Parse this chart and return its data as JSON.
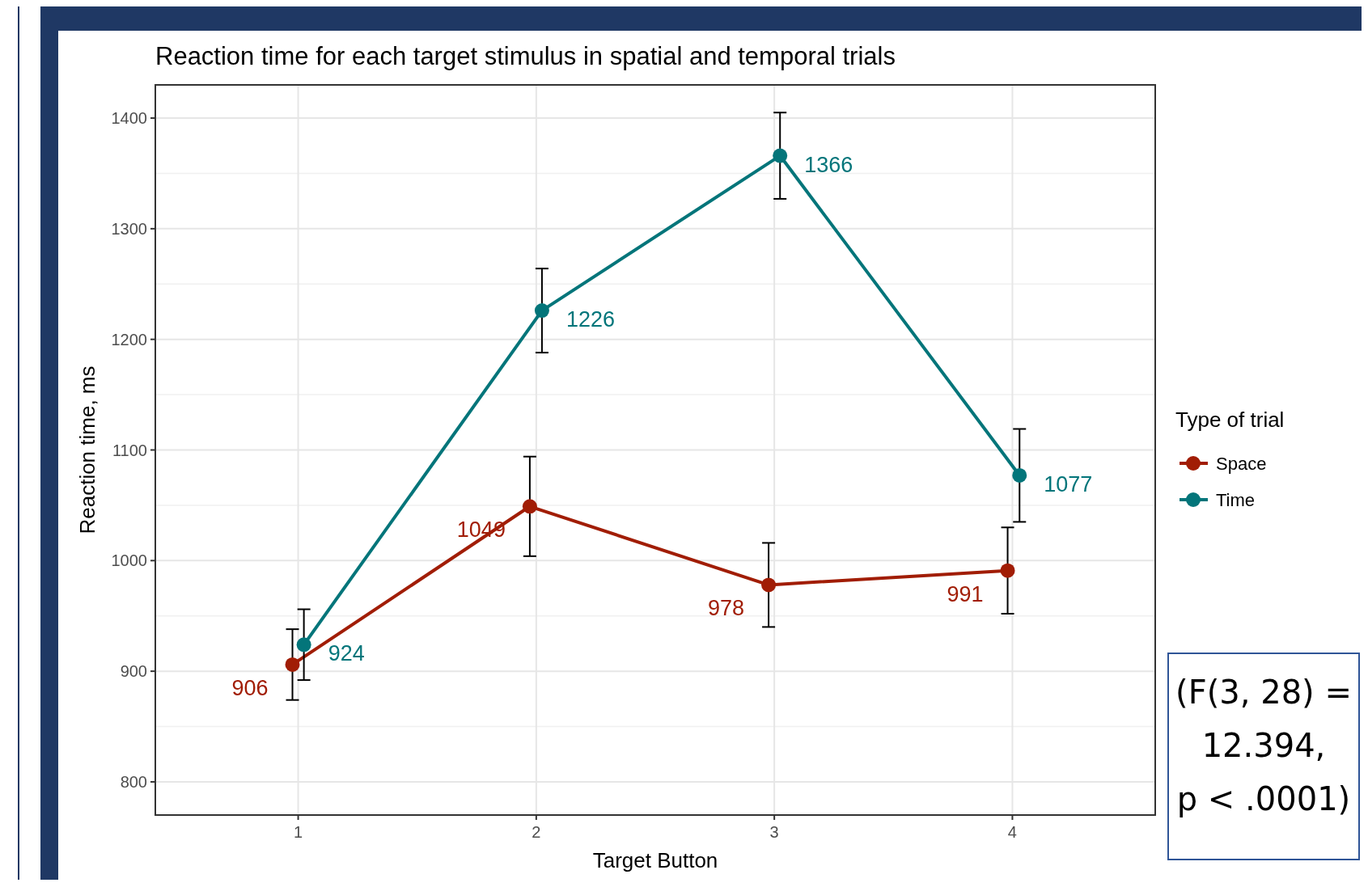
{
  "chart_data": {
    "type": "line",
    "title": "Reaction time for each target stimulus in spatial and temporal trials",
    "xlabel": "Target Button",
    "ylabel": "Reaction time, ms",
    "legend_title": "Type of trial",
    "legend": "right",
    "grid": true,
    "marker": "circle",
    "line_style": "solid",
    "data_labels": true,
    "xlim": [
      0.4,
      4.6
    ],
    "xticks": [
      1,
      2,
      3,
      4
    ],
    "ylim": [
      770,
      1430
    ],
    "yticks": [
      800,
      900,
      1000,
      1100,
      1200,
      1300,
      1400
    ],
    "series": [
      {
        "name": "Space",
        "color": "#a11d05",
        "x": [
          0.976,
          1.973,
          2.976,
          3.98
        ],
        "values": [
          906,
          1049,
          978,
          991
        ],
        "errors": [
          32,
          45,
          38,
          39
        ]
      },
      {
        "name": "Time",
        "color": "#03757a",
        "x": [
          1.024,
          2.024,
          3.024,
          4.03
        ],
        "values": [
          924,
          1226,
          1366,
          1077
        ],
        "errors": [
          32,
          38,
          39,
          42
        ]
      }
    ],
    "annotations": [
      "(F(3, 28) = 12.394, p < .0001)"
    ]
  }
}
